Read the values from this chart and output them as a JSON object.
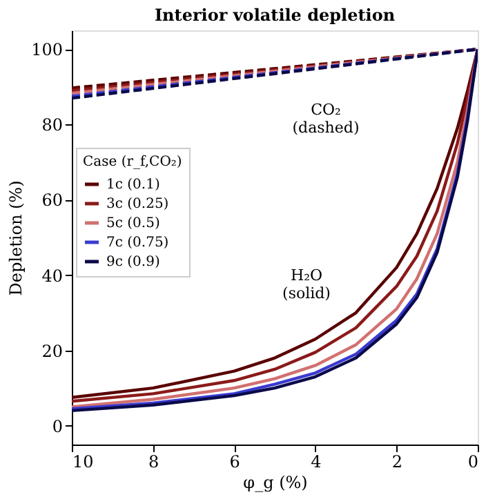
{
  "chart_data": {
    "type": "line",
    "title": "Interior volatile depletion",
    "xlabel": "φ_g (%)",
    "ylabel": "Depletion (%)",
    "legend_title": "Case (r_f,CO₂)",
    "xlim": [
      10,
      0
    ],
    "xticks": [
      10,
      8,
      6,
      4,
      2,
      0
    ],
    "ylim": [
      -5,
      105
    ],
    "yticks": [
      0,
      20,
      40,
      60,
      80,
      100
    ],
    "grid": false,
    "legend": "left",
    "marker": "none",
    "series": [
      {
        "color": "#5a0000",
        "line_style": "dashed",
        "x": [
          10,
          0
        ],
        "values": [
          89.7,
          100
        ]
      },
      {
        "color": "#8b1a1a",
        "line_style": "dashed",
        "x": [
          10,
          0
        ],
        "values": [
          89.0,
          100
        ]
      },
      {
        "color": "#d27070",
        "line_style": "dashed",
        "x": [
          10,
          0
        ],
        "values": [
          88.3,
          100
        ]
      },
      {
        "color": "#3a3ad0",
        "line_style": "dashed",
        "x": [
          10,
          0
        ],
        "values": [
          87.5,
          100
        ]
      },
      {
        "color": "#0a0a4a",
        "line_style": "dashed",
        "x": [
          10,
          0
        ],
        "values": [
          87.0,
          100
        ]
      },
      {
        "name": "1c (0.1)",
        "color": "#5a0000",
        "line_style": "solid",
        "x": [
          10,
          8,
          6,
          5,
          4,
          3,
          2,
          1.5,
          1,
          0.5,
          0.25,
          0
        ],
        "values": [
          7.5,
          10,
          14.5,
          18,
          23,
          30,
          42,
          51,
          63,
          79,
          89,
          100
        ]
      },
      {
        "name": "3c (0.25)",
        "color": "#8b1a1a",
        "line_style": "solid",
        "x": [
          10,
          8,
          6,
          5,
          4,
          3,
          2,
          1.5,
          1,
          0.5,
          0.25,
          0
        ],
        "values": [
          6.5,
          8.5,
          12,
          15,
          19.5,
          26,
          37,
          45,
          57,
          75,
          87,
          100
        ]
      },
      {
        "name": "5c (0.5)",
        "color": "#d27070",
        "line_style": "solid",
        "x": [
          10,
          8,
          6,
          5,
          4,
          3,
          2,
          1.5,
          1,
          0.5,
          0.25,
          0
        ],
        "values": [
          5,
          7,
          10,
          12.5,
          16,
          21.5,
          31,
          39,
          51,
          70,
          84,
          100
        ]
      },
      {
        "name": "7c (0.75)",
        "color": "#3a3ad0",
        "line_style": "solid",
        "x": [
          10,
          8,
          6,
          5,
          4,
          3,
          2,
          1.5,
          1,
          0.5,
          0.25,
          0
        ],
        "values": [
          4.5,
          6,
          8.5,
          11,
          14,
          19,
          28,
          35,
          47,
          67,
          82,
          100
        ]
      },
      {
        "name": "9c (0.9)",
        "color": "#0a0a4a",
        "line_style": "solid",
        "x": [
          10,
          8,
          6,
          5,
          4,
          3,
          2,
          1.5,
          1,
          0.5,
          0.25,
          0
        ],
        "values": [
          4,
          5.5,
          8,
          10,
          13,
          18,
          27,
          34,
          46,
          66,
          81,
          100
        ]
      }
    ],
    "annotations": [
      "CO₂\n(dashed)",
      "H₂O\n(solid)"
    ]
  }
}
